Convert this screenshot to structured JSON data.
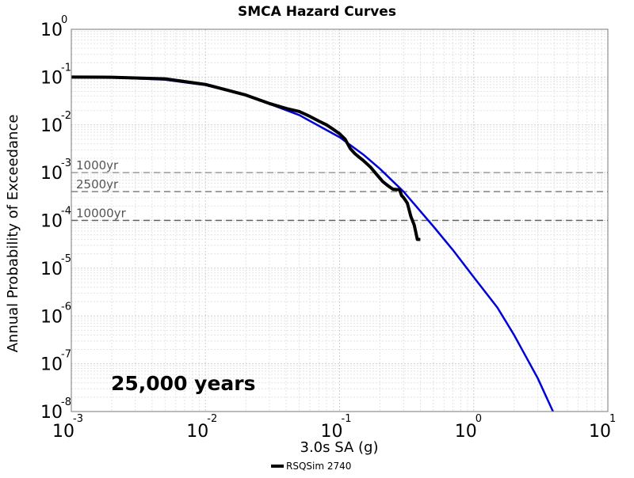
{
  "chart_data": {
    "type": "line",
    "title": "SMCA Hazard Curves",
    "xlabel": "3.0s SA (g)",
    "ylabel": "Annual Probability of Exceedance",
    "x_scale": "log",
    "y_scale": "log",
    "xlim": [
      0.001,
      10
    ],
    "ylim": [
      1e-08,
      1
    ],
    "x_ticks": [
      {
        "base": "10",
        "exp": "-3",
        "value": 0.001
      },
      {
        "base": "10",
        "exp": "-2",
        "value": 0.01
      },
      {
        "base": "10",
        "exp": "-1",
        "value": 0.1
      },
      {
        "base": "10",
        "exp": "0",
        "value": 1
      },
      {
        "base": "10",
        "exp": "1",
        "value": 10
      }
    ],
    "y_ticks": [
      {
        "base": "10",
        "exp": "0",
        "value": 1
      },
      {
        "base": "10",
        "exp": "-1",
        "value": 0.1
      },
      {
        "base": "10",
        "exp": "-2",
        "value": 0.01
      },
      {
        "base": "10",
        "exp": "-3",
        "value": 0.001
      },
      {
        "base": "10",
        "exp": "-4",
        "value": 0.0001
      },
      {
        "base": "10",
        "exp": "-5",
        "value": 1e-05
      },
      {
        "base": "10",
        "exp": "-6",
        "value": 1e-06
      },
      {
        "base": "10",
        "exp": "-7",
        "value": 1e-07
      },
      {
        "base": "10",
        "exp": "-8",
        "value": 1e-08
      }
    ],
    "grid": true,
    "reference_lines": [
      {
        "label": "1000yr",
        "y": 0.001,
        "color": "#9a9a9a"
      },
      {
        "label": "2500yr",
        "y": 0.0004,
        "color": "#808080"
      },
      {
        "label": "10000yr",
        "y": 0.0001,
        "color": "#606060"
      }
    ],
    "annotation": "25,000 years",
    "legend_position": "bottom-center",
    "series": [
      {
        "name": "",
        "color": "#0000dd",
        "x": [
          0.001,
          0.002,
          0.005,
          0.01,
          0.02,
          0.05,
          0.1,
          0.15,
          0.2,
          0.3,
          0.5,
          0.7,
          1.0,
          1.5,
          2.0,
          3.0,
          3.9
        ],
        "y": [
          0.1,
          0.098,
          0.088,
          0.068,
          0.042,
          0.016,
          0.0055,
          0.0024,
          0.0012,
          0.0004,
          7.5e-05,
          2.4e-05,
          6.5e-06,
          1.5e-06,
          4e-07,
          5e-08,
          1e-08
        ]
      },
      {
        "name": "RSQSim 2740",
        "color": "#000000",
        "x": [
          0.001,
          0.002,
          0.005,
          0.01,
          0.02,
          0.03,
          0.04,
          0.05,
          0.06,
          0.07,
          0.08,
          0.09,
          0.1,
          0.11,
          0.12,
          0.13,
          0.14,
          0.15,
          0.17,
          0.19,
          0.21,
          0.23,
          0.25,
          0.28,
          0.29,
          0.3,
          0.32,
          0.34,
          0.36,
          0.38,
          0.4
        ],
        "y": [
          0.1,
          0.099,
          0.092,
          0.07,
          0.042,
          0.028,
          0.022,
          0.019,
          0.015,
          0.012,
          0.01,
          0.008,
          0.0065,
          0.005,
          0.0032,
          0.0025,
          0.0021,
          0.0018,
          0.0013,
          0.0009,
          0.00065,
          0.00053,
          0.00045,
          0.00044,
          0.00033,
          0.0003,
          0.00023,
          0.00012,
          8e-05,
          4e-05,
          4e-05
        ]
      }
    ]
  }
}
